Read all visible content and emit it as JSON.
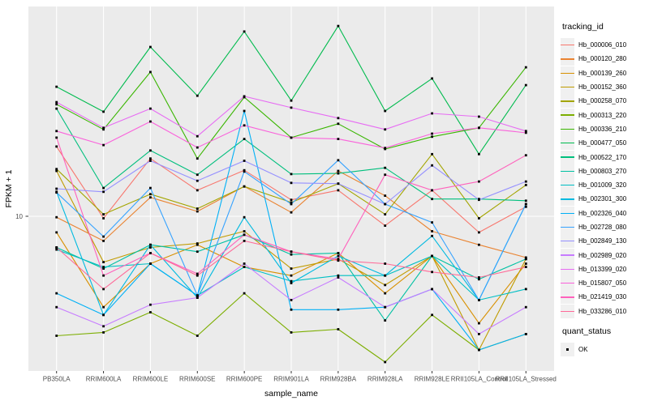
{
  "chart_data": {
    "type": "line",
    "title": "",
    "xlabel": "sample_name",
    "ylabel": "FPKM + 1",
    "y_scale": "log10",
    "y_ticks": [
      10
    ],
    "y_tick_label": "10",
    "ylim_approx": [
      2,
      75
    ],
    "grid": "major-only",
    "legend_position": "right",
    "point_shape": "small-black-square",
    "categories": [
      "PB350LA",
      "RRIM600LA",
      "RRIM600LE",
      "RRIM600SE",
      "RRIM600PE",
      "RRIM901LA",
      "RRIM928BA",
      "RRIM928LA",
      "RRIM928LE",
      "RRII105LA_Control",
      "RRII105LA_Stressed"
    ],
    "series": [
      {
        "name": "Hb_000006_010",
        "color": "#F8766D",
        "values": [
          20.2,
          9.8,
          17.9,
          13.0,
          15.9,
          11.8,
          13.0,
          9.1,
          13.0,
          8.5,
          11.0
        ]
      },
      {
        "name": "Hb_000120_280",
        "color": "#EA8331",
        "values": [
          9.9,
          7.8,
          12.1,
          10.5,
          13.5,
          10.4,
          15.8,
          12.3,
          8.6,
          7.5,
          6.6
        ]
      },
      {
        "name": "Hb_000139_260",
        "color": "#D89000",
        "values": [
          8.5,
          4.0,
          6.2,
          7.5,
          6.0,
          5.5,
          6.9,
          4.6,
          6.7,
          3.4,
          6.2
        ]
      },
      {
        "name": "Hb_000152_360",
        "color": "#C09B00",
        "values": [
          15.8,
          6.3,
          7.3,
          7.6,
          8.6,
          5.9,
          6.5,
          5.0,
          6.7,
          2.6,
          6.5
        ]
      },
      {
        "name": "Hb_000258_070",
        "color": "#A3A500",
        "values": [
          16.1,
          10.2,
          12.5,
          10.8,
          13.5,
          11.5,
          13.9,
          10.2,
          18.7,
          9.8,
          13.7
        ]
      },
      {
        "name": "Hb_000313_220",
        "color": "#7CAE00",
        "values": [
          3.0,
          3.1,
          3.8,
          3.0,
          4.6,
          3.1,
          3.2,
          2.3,
          3.7,
          2.6,
          3.05
        ]
      },
      {
        "name": "Hb_000336_210",
        "color": "#39B600",
        "values": [
          30.9,
          24.0,
          42.8,
          17.9,
          33.2,
          22.1,
          25.4,
          19.7,
          22.3,
          24.4,
          44.9
        ]
      },
      {
        "name": "Hb_000477_050",
        "color": "#00BB4E",
        "values": [
          36.9,
          28.7,
          55.1,
          33.7,
          64.4,
          32.1,
          68.1,
          28.9,
          40.1,
          18.7,
          37.5
        ]
      },
      {
        "name": "Hb_000522_170",
        "color": "#00BF7D",
        "values": [
          29.6,
          13.3,
          19.4,
          15.2,
          21.8,
          15.3,
          15.4,
          16.3,
          11.9,
          11.9,
          11.7
        ]
      },
      {
        "name": "Hb_000803_270",
        "color": "#00C1A3",
        "values": [
          7.3,
          5.9,
          7.5,
          7.0,
          8.3,
          6.8,
          6.9,
          3.5,
          6.7,
          5.3,
          6.5
        ]
      },
      {
        "name": "Hb_001009_320",
        "color": "#00BFC4",
        "values": [
          7.15,
          6.0,
          6.2,
          4.5,
          6.0,
          5.2,
          5.5,
          5.5,
          6.7,
          4.3,
          4.8
        ]
      },
      {
        "name": "Hb_002301_300",
        "color": "#00BAE0",
        "values": [
          12.8,
          3.7,
          7.5,
          4.4,
          9.9,
          5.1,
          6.7,
          5.5,
          8.2,
          4.3,
          11.3
        ]
      },
      {
        "name": "Hb_002326_040",
        "color": "#00B0F6",
        "values": [
          4.6,
          3.7,
          6.2,
          4.5,
          28.9,
          3.9,
          3.9,
          4.0,
          4.8,
          2.6,
          3.05
        ]
      },
      {
        "name": "Hb_002728_080",
        "color": "#35A2FF",
        "values": [
          12.7,
          8.15,
          13.3,
          4.5,
          15.7,
          11.3,
          17.6,
          11.3,
          9.4,
          4.3,
          11.3
        ]
      },
      {
        "name": "Hb_002849_130",
        "color": "#9590FF",
        "values": [
          13.2,
          12.8,
          17.5,
          14.3,
          17.5,
          14.0,
          13.9,
          11.3,
          16.7,
          11.8,
          14.2
        ]
      },
      {
        "name": "Hb_002989_020",
        "color": "#C77CFF",
        "values": [
          4.0,
          3.3,
          4.1,
          4.4,
          6.2,
          4.3,
          5.4,
          4.0,
          4.8,
          3.05,
          4.0
        ]
      },
      {
        "name": "Hb_013399_020",
        "color": "#E76BF3",
        "values": [
          31.6,
          24.4,
          29.6,
          22.4,
          33.5,
          29.9,
          26.9,
          24.0,
          28.2,
          27.3,
          23.6
        ]
      },
      {
        "name": "Hb_015807_050",
        "color": "#FA62DB",
        "values": [
          23.6,
          20.5,
          26.0,
          20.0,
          25.0,
          22.1,
          21.8,
          19.9,
          23.0,
          24.4,
          23.2
        ]
      },
      {
        "name": "Hb_021419_030",
        "color": "#FF62BC",
        "values": [
          22.1,
          5.5,
          6.9,
          5.6,
          8.3,
          7.0,
          6.5,
          15.2,
          13.0,
          14.2,
          18.5
        ]
      },
      {
        "name": "Hb_033286_010",
        "color": "#FF6A98",
        "values": [
          7.3,
          4.8,
          6.9,
          5.5,
          7.8,
          7.0,
          6.4,
          6.2,
          5.7,
          5.4,
          6.0
        ]
      }
    ]
  },
  "legend": {
    "tracking_title": "tracking_id",
    "quant_title": "quant_status",
    "quant_items": [
      {
        "label": "OK",
        "marker": "black-square"
      }
    ]
  },
  "style": {
    "background": "#FFFFFF",
    "panel_bg": "#EBEBEB",
    "grid_color": "#FFFFFF",
    "tick_color": "#333333",
    "axis_text_color": "#4D4D4D",
    "axis_title_color": "#000000",
    "point_color": "#000000",
    "legend_key_bg": "#F0F0F0"
  }
}
